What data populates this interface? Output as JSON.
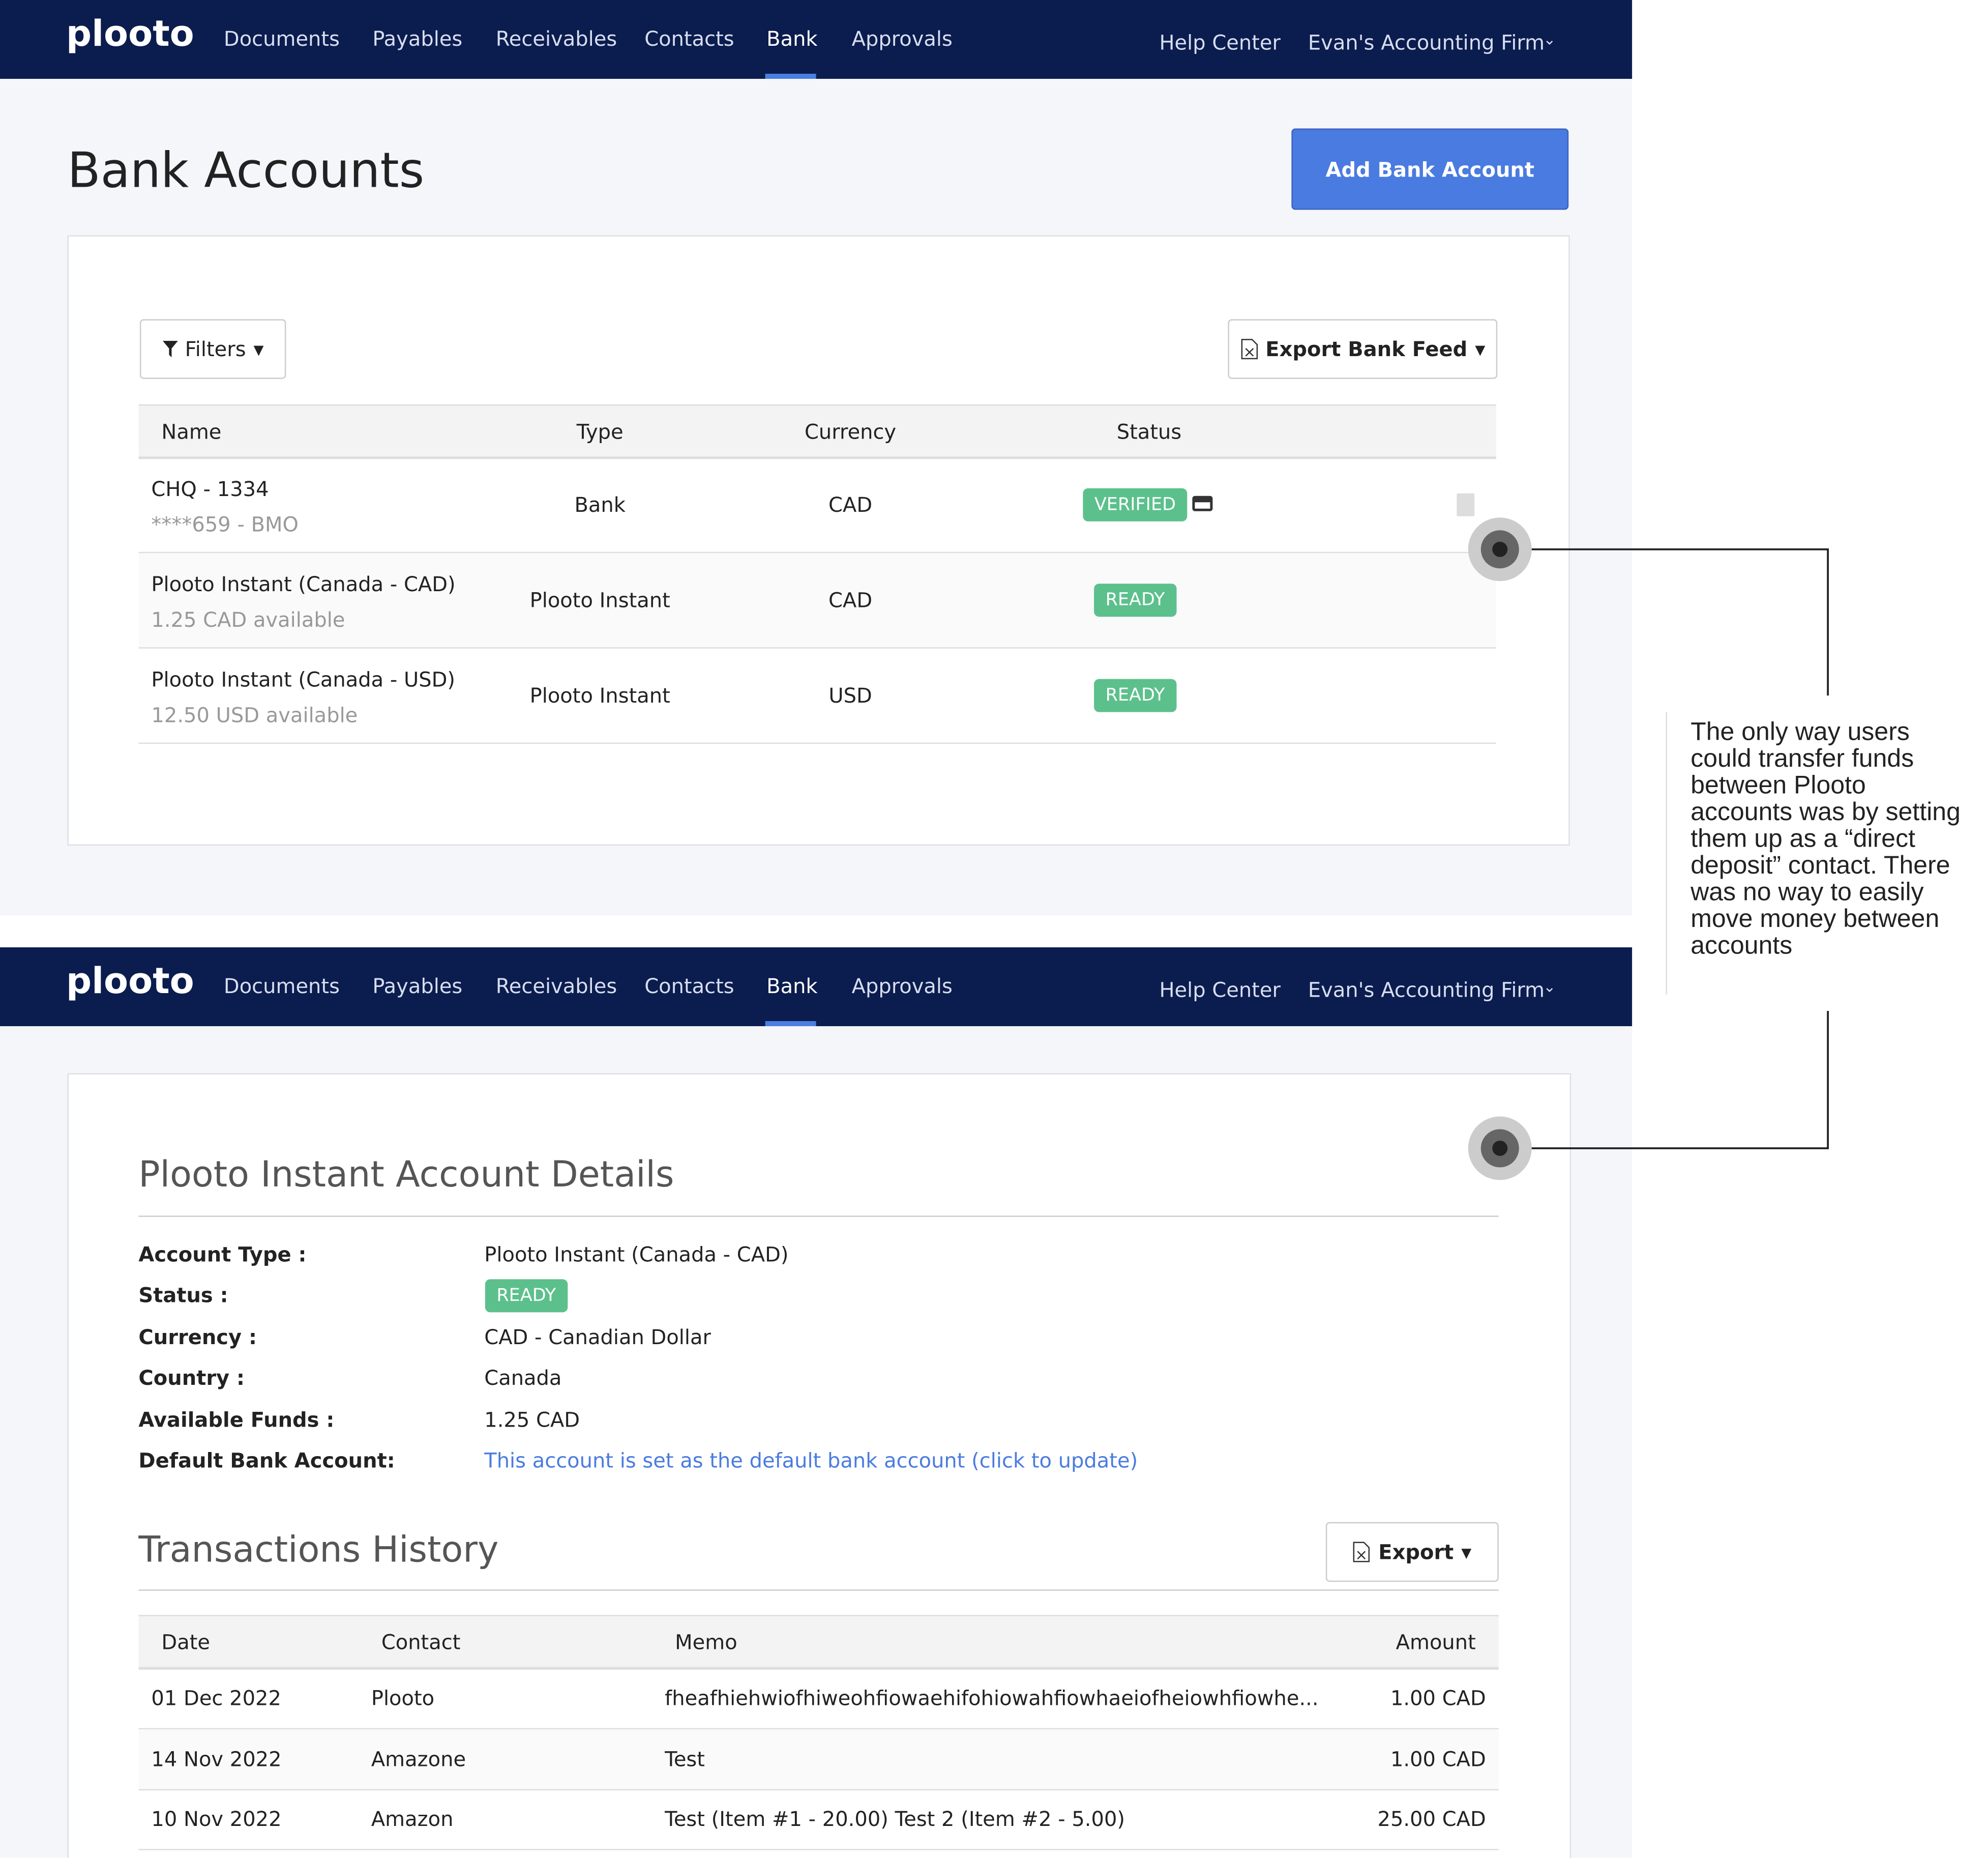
{
  "top_screen": {
    "nav": {
      "logo": "plooto",
      "links": [
        "Documents",
        "Payables",
        "Receivables",
        "Contacts",
        "Bank",
        "Approvals"
      ],
      "help": "Help Center",
      "account": "Evan's Accounting Firm"
    },
    "title": "Bank Accounts",
    "add_button": "Add Bank Account",
    "filters": "Filters",
    "export_feed": "Export Bank Feed",
    "table": {
      "headers": [
        "Name",
        "Type",
        "Currency",
        "Status"
      ],
      "rows": [
        {
          "name": "CHQ - 1334",
          "sub": "****659 - BMO",
          "type": "Bank",
          "currency": "CAD",
          "status": "VERIFIED"
        },
        {
          "name": "Plooto Instant (Canada - CAD)",
          "sub": "1.25 CAD available",
          "type": "Plooto Instant",
          "currency": "CAD",
          "status": "READY"
        },
        {
          "name": "Plooto Instant (Canada - USD)",
          "sub": "12.50 USD available",
          "type": "Plooto Instant",
          "currency": "USD",
          "status": "READY"
        }
      ]
    }
  },
  "bottom_screen": {
    "nav": {
      "logo": "plooto",
      "links": [
        "Documents",
        "Payables",
        "Receivables",
        "Contacts",
        "Bank",
        "Approvals"
      ],
      "help": "Help Center",
      "account": "Evan's Accounting Firm"
    },
    "details_title": "Plooto Instant Account Details",
    "fields": [
      {
        "label": "Account Type :",
        "value": "Plooto Instant (Canada - CAD)"
      },
      {
        "label": "Status :",
        "value": "READY"
      },
      {
        "label": "Currency :",
        "value": "CAD - Canadian Dollar"
      },
      {
        "label": "Country :",
        "value": "Canada"
      },
      {
        "label": "Available Funds :",
        "value": "1.25 CAD"
      },
      {
        "label": "Default Bank Account:",
        "value": "This account is set as the default bank account (click to update)"
      }
    ],
    "transactions_title": "Transactions History",
    "export": "Export",
    "table": {
      "headers": [
        "Date",
        "Contact",
        "Memo",
        "Amount"
      ],
      "rows": [
        [
          "01 Dec 2022",
          "Plooto",
          "fheafhiehwiofhiweohfiowaehifohiowahfiowhaeiofheiowhfiowhe...",
          "1.00 CAD"
        ],
        [
          "14 Nov 2022",
          "Amazone",
          "Test",
          "1.00 CAD"
        ],
        [
          "10 Nov 2022",
          "Amazon",
          "Test (Item #1 - 20.00) Test 2 (Item #2 - 5.00)",
          "25.00 CAD"
        ]
      ]
    }
  },
  "annotation": "The only way users could transfer funds between Plooto accounts was by setting them up as a “direct deposit” contact. There was no way to easily move money between accounts"
}
